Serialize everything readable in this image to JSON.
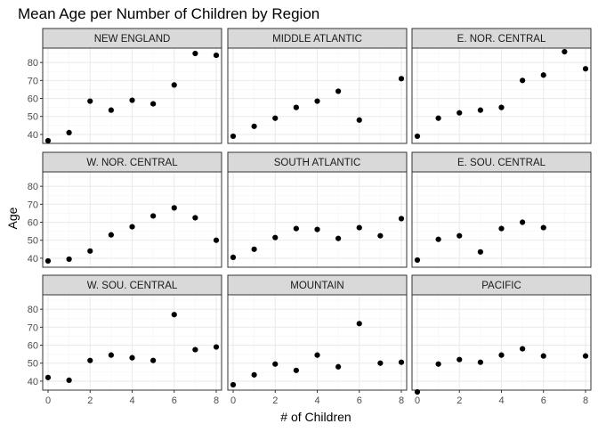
{
  "chart_data": {
    "type": "scatter",
    "title": "Mean Age per Number of Children by Region",
    "xlabel": "# of Children",
    "ylabel": "Age",
    "xlim": [
      0,
      8
    ],
    "ylim": [
      35,
      88
    ],
    "x_ticks": [
      "0",
      "2",
      "4",
      "6",
      "8"
    ],
    "y_ticks": [
      "40",
      "50",
      "60",
      "70",
      "80"
    ],
    "x_tick_values": [
      0,
      2,
      4,
      6,
      8
    ],
    "y_tick_values": [
      40,
      50,
      60,
      70,
      80
    ],
    "grid": true,
    "theme_colors": {
      "panel_border": "#333333",
      "grid_major": "#ebebeb",
      "grid_minor": "#f5f5f5",
      "strip_fill": "#d9d9d9",
      "point": "#000000"
    },
    "panels": [
      {
        "name": "NEW ENGLAND",
        "x": [
          0,
          1,
          2,
          3,
          4,
          5,
          6,
          7,
          8
        ],
        "y": [
          36.5,
          41,
          58.5,
          53.5,
          59,
          57,
          67.5,
          85,
          84
        ]
      },
      {
        "name": "MIDDLE ATLANTIC",
        "x": [
          0,
          1,
          2,
          3,
          4,
          5,
          6,
          8
        ],
        "y": [
          39,
          44.5,
          49,
          55,
          58.5,
          64,
          48,
          71
        ]
      },
      {
        "name": "E. NOR. CENTRAL",
        "x": [
          0,
          1,
          2,
          3,
          4,
          5,
          6,
          7,
          8
        ],
        "y": [
          39,
          49,
          52,
          53.5,
          55,
          70,
          73,
          86,
          76.5
        ]
      },
      {
        "name": "W. NOR. CENTRAL",
        "x": [
          0,
          1,
          2,
          3,
          4,
          5,
          6,
          7,
          8
        ],
        "y": [
          38.5,
          39.5,
          44,
          53,
          57.5,
          63.5,
          68,
          62.5,
          50
        ]
      },
      {
        "name": "SOUTH ATLANTIC",
        "x": [
          0,
          1,
          2,
          3,
          4,
          5,
          6,
          7,
          8
        ],
        "y": [
          40.5,
          45,
          51.5,
          56.5,
          56,
          51,
          57,
          52.5,
          62
        ]
      },
      {
        "name": "E. SOU. CENTRAL",
        "x": [
          0,
          1,
          2,
          3,
          4,
          5,
          6
        ],
        "y": [
          39,
          50.5,
          52.5,
          43.5,
          56.5,
          60,
          57
        ]
      },
      {
        "name": "W. SOU. CENTRAL",
        "x": [
          0,
          1,
          2,
          3,
          4,
          5,
          6,
          7,
          8
        ],
        "y": [
          42,
          40.5,
          51.5,
          54.5,
          53,
          51.5,
          77,
          57.5,
          59
        ]
      },
      {
        "name": "MOUNTAIN",
        "x": [
          0,
          1,
          2,
          3,
          4,
          5,
          6,
          7,
          8
        ],
        "y": [
          38,
          43.5,
          49.5,
          46,
          54.5,
          48,
          72,
          50,
          50.5
        ]
      },
      {
        "name": "PACIFIC",
        "x": [
          0,
          1,
          2,
          3,
          4,
          5,
          6,
          8
        ],
        "y": [
          34,
          49.5,
          52,
          50.5,
          54.5,
          58,
          54,
          54
        ]
      }
    ]
  }
}
